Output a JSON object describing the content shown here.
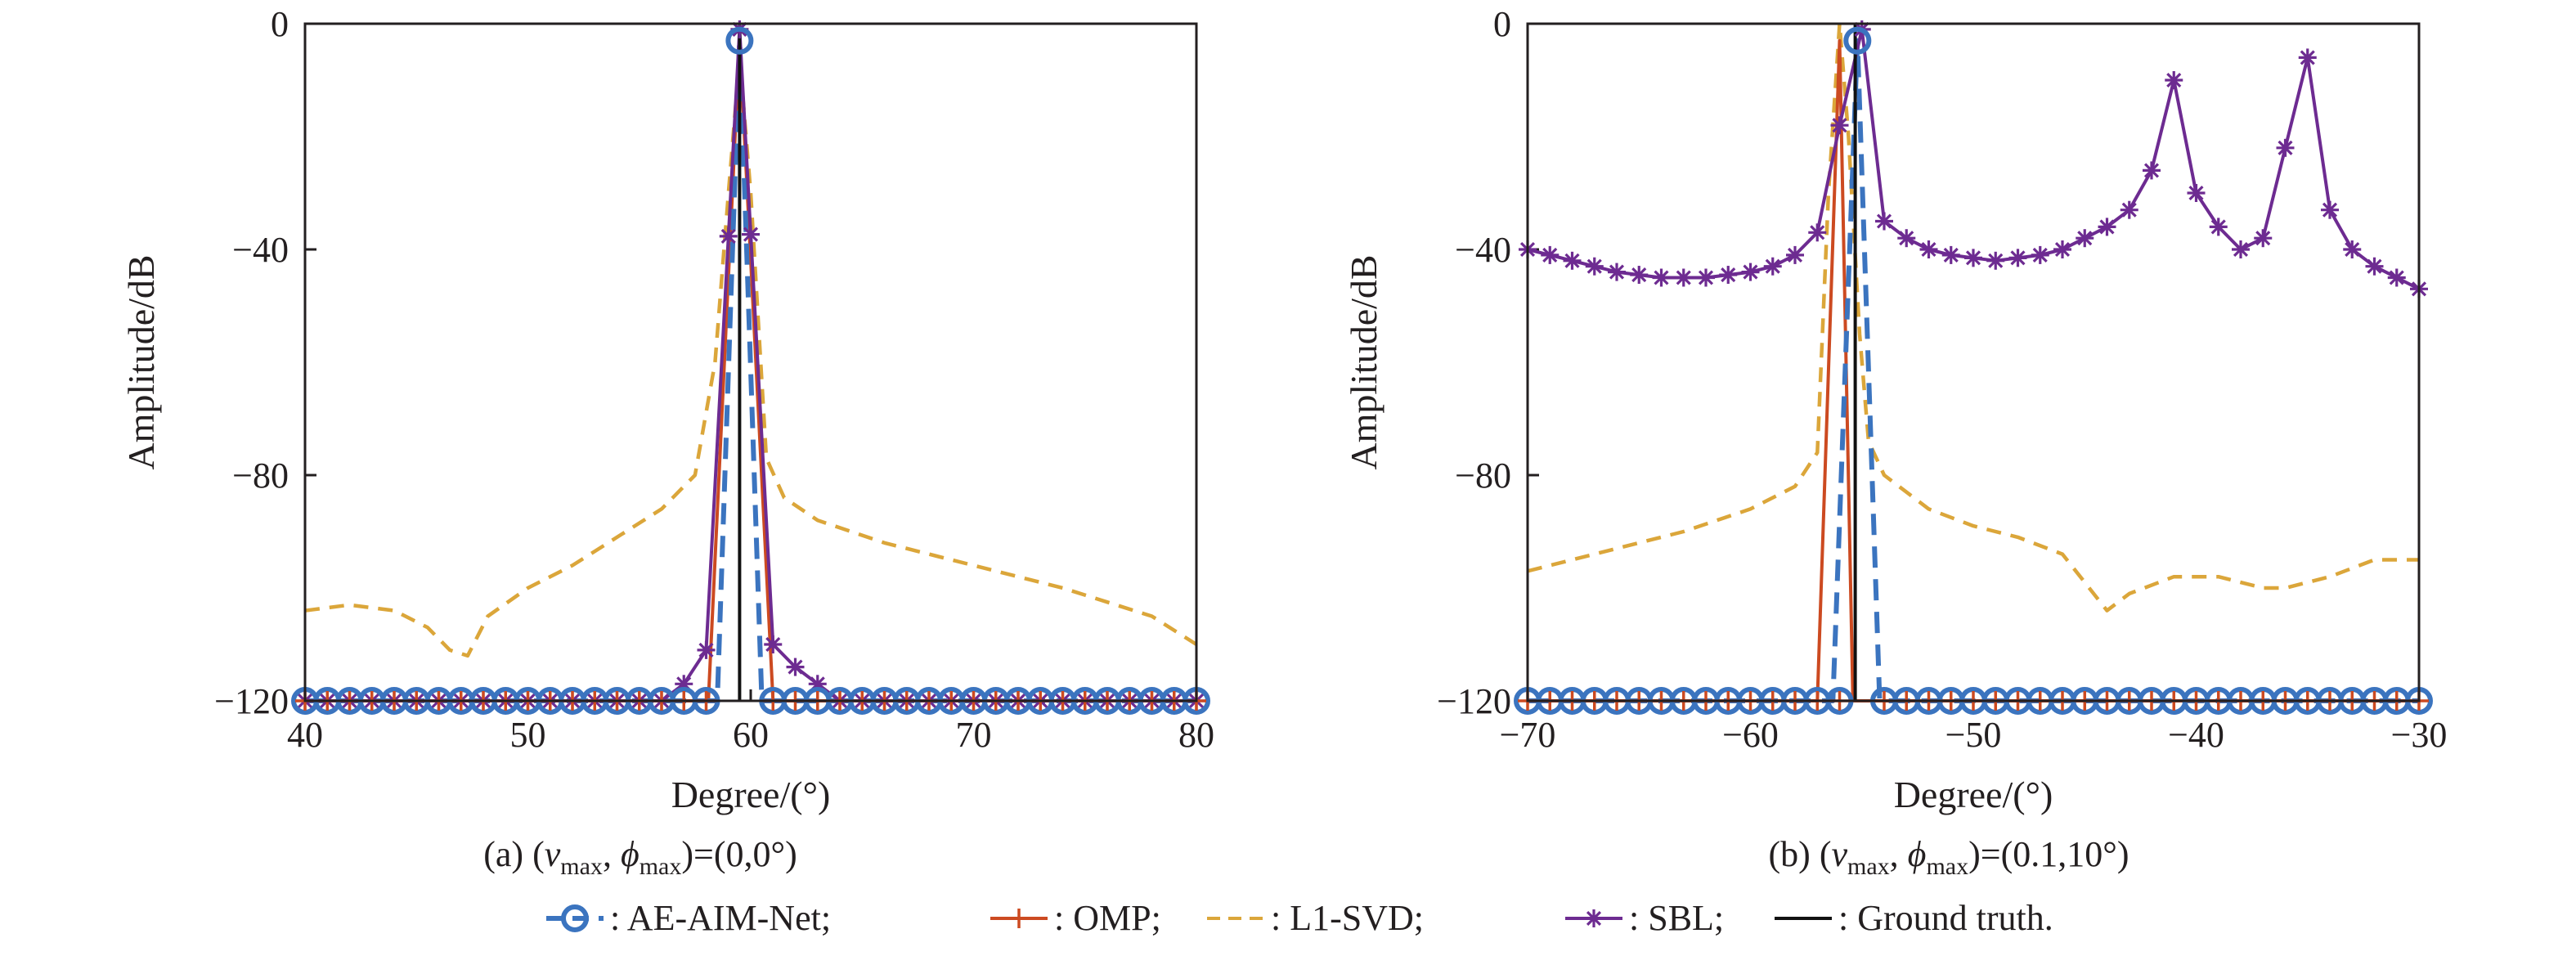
{
  "colors": {
    "AE-AIM-Net": "#3b74bf",
    "OMP": "#cc4a21",
    "L1-SVD": "#dba63a",
    "SBL": "#6d2b91",
    "Ground truth": "#111111"
  },
  "legend": {
    "entries": [
      {
        "key": "AE-AIM-Net",
        "label": ": AE-AIM-Net;",
        "marker": "circle",
        "dash": "dashed"
      },
      {
        "key": "OMP",
        "label": ": OMP;",
        "marker": "plus",
        "dash": "solid"
      },
      {
        "key": "L1-SVD",
        "label": ": L1-SVD;",
        "marker": "none",
        "dash": "dashed"
      },
      {
        "key": "SBL",
        "label": ": SBL;",
        "marker": "asterisk",
        "dash": "solid"
      },
      {
        "key": "Ground truth",
        "label": ": Ground truth.",
        "marker": "none",
        "dash": "solid"
      }
    ]
  },
  "chart_data": [
    {
      "type": "line",
      "panel": "a",
      "caption_prefix": "(a) (",
      "caption_v": "v",
      "caption_max": "max",
      "caption_sep": ", ",
      "caption_phi": "ϕ",
      "caption_value": ")=(0,0°)",
      "xlabel": "Degree/(°)",
      "ylabel": "Amplitude/dB",
      "xlim": [
        40,
        80
      ],
      "ylim": [
        -120,
        0
      ],
      "xticks": [
        40,
        50,
        60,
        70,
        80
      ],
      "xtick_labels": [
        "40",
        "50",
        "60",
        "70",
        "80"
      ],
      "yticks": [
        0,
        -40,
        -80,
        -120
      ],
      "ytick_labels": [
        "0",
        "−40",
        "−80",
        "−120"
      ],
      "series": [
        {
          "name": "L1-SVD",
          "x": [
            40,
            42,
            44,
            45.5,
            46.5,
            47.3,
            48.2,
            50,
            52,
            54,
            56,
            57.5,
            58.4,
            59.0,
            59.5,
            60.0,
            60.7,
            61.5,
            63,
            66,
            70,
            74,
            78,
            80
          ],
          "y": [
            -104,
            -103,
            -104,
            -107,
            -111,
            -112,
            -105,
            -100,
            -96,
            -91,
            -86,
            -80,
            -60,
            -30,
            -6,
            -30,
            -77,
            -84,
            -88,
            -92,
            -96,
            -100,
            -105,
            -110
          ]
        },
        {
          "name": "OMP",
          "x": [
            40,
            58.1,
            59.5,
            61.0,
            80
          ],
          "y": [
            -120,
            -120,
            -3,
            -120,
            -120
          ]
        },
        {
          "name": "AE-AIM-Net",
          "x": [
            40,
            58.5,
            59.5,
            60.5,
            80
          ],
          "y": [
            -120,
            -120,
            -3,
            -120,
            -120
          ]
        },
        {
          "name": "SBL",
          "x": [
            40,
            56,
            57,
            58.0,
            59.5,
            61.0,
            62.0,
            63,
            64,
            80
          ],
          "y": [
            -120,
            -120,
            -117,
            -111,
            -1,
            -110,
            -114,
            -117,
            -120,
            -120
          ]
        },
        {
          "name": "Ground truth",
          "x": [
            59.5,
            59.5
          ],
          "y": [
            -120,
            0
          ]
        }
      ]
    },
    {
      "type": "line",
      "panel": "b",
      "caption_prefix": "(b) (",
      "caption_v": "v",
      "caption_max": "max",
      "caption_sep": ", ",
      "caption_phi": "ϕ",
      "caption_value": ")=(0.1,10°)",
      "xlabel": "Degree/(°)",
      "ylabel": "Amplitude/dB",
      "xlim": [
        -70,
        -30
      ],
      "ylim": [
        -120,
        0
      ],
      "xticks": [
        -70,
        -60,
        -50,
        -40,
        -30
      ],
      "xtick_labels": [
        "−70",
        "−60",
        "−50",
        "−40",
        "−30"
      ],
      "yticks": [
        0,
        -40,
        -80,
        -120
      ],
      "ytick_labels": [
        "0",
        "−40",
        "−80",
        "−120"
      ],
      "series": [
        {
          "name": "L1-SVD",
          "x": [
            -70,
            -66,
            -63,
            -60,
            -58,
            -57,
            -56.5,
            -56.0,
            -55.6,
            -55.1,
            -54.7,
            -54,
            -52,
            -50,
            -48,
            -46,
            -45,
            -44,
            -43,
            -41,
            -39,
            -37,
            -36,
            -34,
            -32,
            -30
          ],
          "y": [
            -97,
            -93,
            -90,
            -86,
            -82,
            -76,
            -30,
            0,
            -20,
            -55,
            -74,
            -80,
            -86,
            -89,
            -91,
            -94,
            -99,
            -104,
            -101,
            -98,
            -98,
            -100,
            -100,
            -98,
            -95,
            -95
          ]
        },
        {
          "name": "OMP",
          "x": [
            -70,
            -57.0,
            -56.0,
            -55.4,
            -54.8,
            -30
          ],
          "y": [
            -120,
            -120,
            -3,
            -120,
            -120,
            -120
          ]
        },
        {
          "name": "AE-AIM-Net",
          "x": [
            -70,
            -56.3,
            -55.2,
            -54.2,
            -30
          ],
          "y": [
            -120,
            -120,
            -3,
            -120,
            -120
          ]
        },
        {
          "name": "SBL",
          "x": [
            -70,
            -69,
            -68,
            -67,
            -66,
            -65,
            -64,
            -63,
            -62,
            -61,
            -60,
            -59,
            -58,
            -57,
            -56,
            -55,
            -54,
            -53,
            -52,
            -51,
            -50,
            -49,
            -48,
            -47,
            -46,
            -45,
            -44,
            -43,
            -42,
            -41,
            -40,
            -39,
            -38,
            -37,
            -36,
            -35,
            -34,
            -33,
            -32,
            -31,
            -30
          ],
          "y": [
            -40,
            -41,
            -42,
            -43,
            -44,
            -44.5,
            -45,
            -45,
            -45,
            -44.5,
            -44,
            -43,
            -41,
            -37,
            -18,
            -1,
            -35,
            -38,
            -40,
            -41,
            -41.5,
            -42,
            -41.5,
            -41,
            -40,
            -38,
            -36,
            -33,
            -26,
            -10,
            -30,
            -36,
            -40,
            -38,
            -22,
            -6,
            -33,
            -40,
            -43,
            -45,
            -47
          ]
        },
        {
          "name": "Ground truth",
          "x": [
            -55.3,
            -55.3
          ],
          "y": [
            -120,
            0
          ]
        }
      ]
    }
  ]
}
